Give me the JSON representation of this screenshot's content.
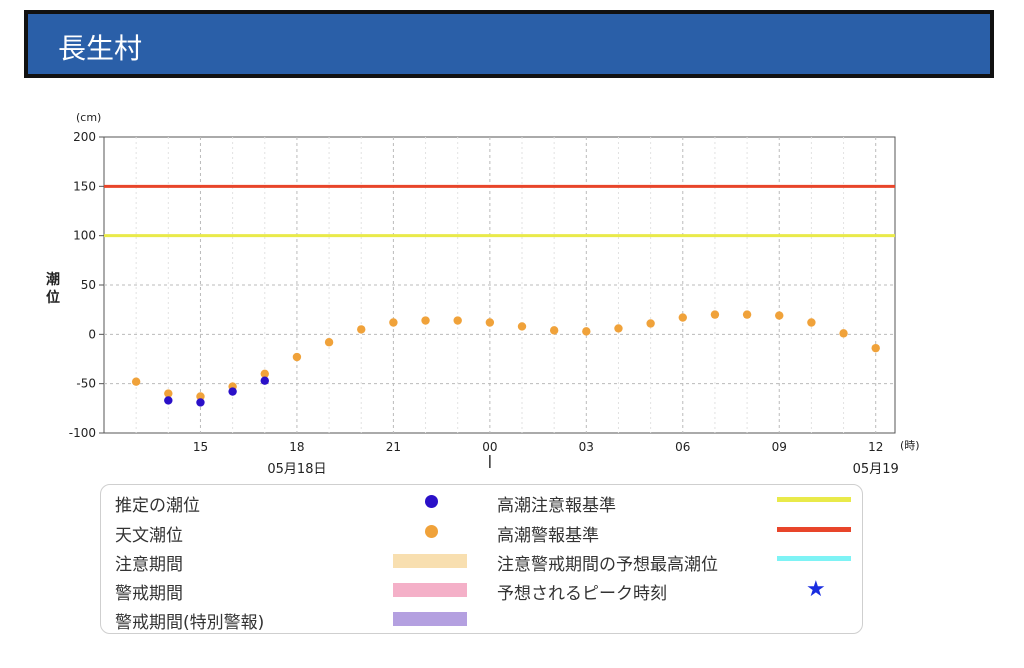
{
  "header": {
    "title": "長生村"
  },
  "chart_data": {
    "type": "scatter",
    "ylabel": "潮位",
    "y_unit": "(cm)",
    "x_unit": "(時)",
    "ylim": [
      -100,
      200
    ],
    "y_ticks": [
      200,
      150,
      100,
      50,
      0,
      -50,
      -100
    ],
    "x_tick_labels": [
      "15",
      "18",
      "21",
      "00",
      "03",
      "06",
      "09",
      "12"
    ],
    "x_tick_hours": [
      15,
      18,
      21,
      24,
      27,
      30,
      33,
      36
    ],
    "xlim_hours": [
      12,
      36.6
    ],
    "date_labels": [
      {
        "text": "05月18日",
        "hour": 18
      },
      {
        "text": "05月19",
        "hour": 36
      }
    ],
    "grid": true,
    "reference_lines": [
      {
        "name": "高潮警報基準",
        "value": 150,
        "color": "#e8452a"
      },
      {
        "name": "高潮注意報基準",
        "value": 100,
        "color": "#e9ea4a"
      }
    ],
    "series": [
      {
        "name": "天文潮位",
        "color": "#f0a23a",
        "x_hours": [
          13,
          14,
          15,
          16,
          17,
          18,
          19,
          20,
          21,
          22,
          23,
          24,
          25,
          26,
          27,
          28,
          29,
          30,
          31,
          32,
          33,
          34,
          35,
          36
        ],
        "values": [
          -48,
          -60,
          -63,
          -53,
          -40,
          -23,
          -8,
          5,
          12,
          14,
          14,
          12,
          8,
          4,
          3,
          6,
          11,
          17,
          20,
          20,
          19,
          12,
          1,
          -14
        ]
      },
      {
        "name": "推定の潮位",
        "color": "#2a10c8",
        "x_hours": [
          14,
          15,
          16,
          17
        ],
        "values": [
          -67,
          -69,
          -58,
          -47
        ]
      }
    ]
  },
  "legend": {
    "left": [
      {
        "label": "推定の潮位",
        "kind": "dot",
        "color": "#2a10c8"
      },
      {
        "label": "天文潮位",
        "kind": "dot",
        "color": "#f0a23a"
      },
      {
        "label": "注意期間",
        "kind": "bar",
        "color": "#f8dfb0"
      },
      {
        "label": "警戒期間",
        "kind": "bar",
        "color": "#f4b0c8"
      },
      {
        "label": "警戒期間(特別警報)",
        "kind": "bar",
        "color": "#b4a0e0"
      }
    ],
    "right": [
      {
        "label": "高潮注意報基準",
        "kind": "line",
        "color": "#e9ea4a"
      },
      {
        "label": "高潮警報基準",
        "kind": "line",
        "color": "#e8452a"
      },
      {
        "label": "注意警戒期間の予想最高潮位",
        "kind": "line",
        "color": "#7ef3f5"
      },
      {
        "label": "予想されるピーク時刻",
        "kind": "star",
        "color": "#1a2de0"
      }
    ]
  }
}
